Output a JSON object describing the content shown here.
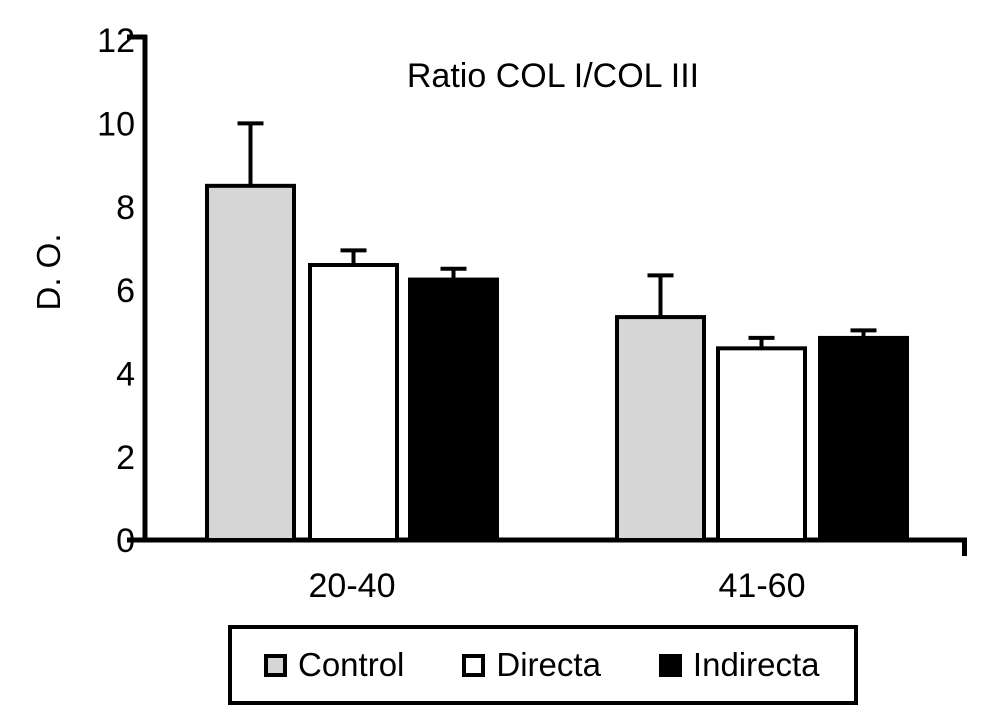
{
  "chart_data": {
    "type": "bar",
    "title": "Ratio COL I/COL III",
    "xlabel": "",
    "ylabel": "D. O.",
    "categories": [
      "20-40",
      "41-60"
    ],
    "series": [
      {
        "name": "Control",
        "color": "#d6d6d6",
        "values": [
          8.5,
          5.35
        ],
        "errors_up": [
          1.5,
          1.0
        ]
      },
      {
        "name": "Directa",
        "color": "#ffffff",
        "values": [
          6.6,
          4.6
        ],
        "errors_up": [
          0.35,
          0.25
        ]
      },
      {
        "name": "Indirecta",
        "color": "#000000",
        "values": [
          6.25,
          4.85
        ],
        "errors_up": [
          0.26,
          0.18
        ]
      }
    ],
    "ylim": [
      0,
      12
    ],
    "yticks": [
      0,
      2,
      4,
      6,
      8,
      10,
      12
    ],
    "grid": false,
    "error_bars": "upper-only",
    "legend_position": "bottom",
    "bar_edge_color": "#000000",
    "axis_color": "#000000",
    "background_color": "#ffffff"
  }
}
